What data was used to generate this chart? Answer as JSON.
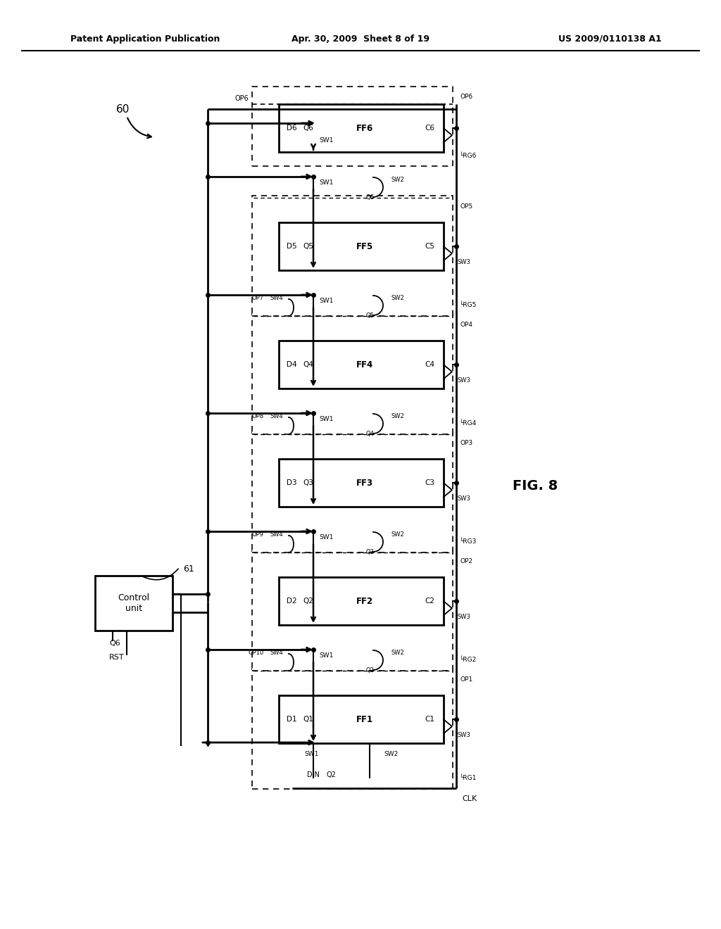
{
  "patent_header_left": "Patent Application Publication",
  "patent_header_mid": "Apr. 30, 2009  Sheet 8 of 19",
  "patent_header_right": "US 2009/0110138 A1",
  "fig_label": "FIG. 8",
  "background_color": "#ffffff",
  "num_stages": 6,
  "stage_ff": [
    "FF1",
    "FF2",
    "FF3",
    "FF4",
    "FF5",
    "FF6"
  ],
  "stage_d": [
    "D1",
    "D2",
    "D3",
    "D4",
    "D5",
    "D6"
  ],
  "stage_q": [
    "Q1",
    "Q2",
    "Q3",
    "Q4",
    "Q5",
    "Q6"
  ],
  "stage_c": [
    "C1",
    "C2",
    "C3",
    "C4",
    "C5",
    "C6"
  ],
  "stage_rg": [
    "RG1",
    "RG2",
    "RG3",
    "RG4",
    "RG5",
    "RG6"
  ],
  "stage_op": [
    "OP1",
    "OP2",
    "OP3",
    "OP4",
    "OP5",
    "OP6"
  ],
  "op_left": [
    "OP10",
    "OP9",
    "OP8",
    "OP7"
  ],
  "sw_labels": [
    "SW1",
    "SW2",
    "SW3",
    "SW4"
  ],
  "ctrl_label": "Control\nunit",
  "ctrl_ref": "61",
  "circuit_ref": "60",
  "din_label": "DIN",
  "q2_label": "Q2",
  "q3_label": "Q3",
  "q4_label": "Q4",
  "clk_label": "CLK",
  "q6_label": "Q6",
  "rst_label": "RST"
}
